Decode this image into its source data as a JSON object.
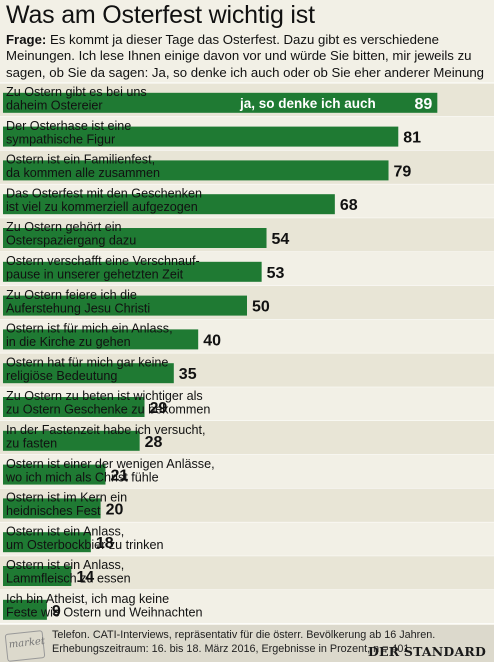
{
  "title": "Was am Osterfest wichtig ist",
  "question": {
    "label": "Frage:",
    "text": " Es kommt ja dieser Tage das Osterfest. Dazu gibt es verschiedene Meinungen. Ich lese Ihnen einige davon vor und würde Sie bitten, mir jeweils zu sagen, ob Sie da sagen: Ja, so denke ich auch oder ob Sie eher anderer Meinung sind."
  },
  "chart_data": {
    "type": "bar",
    "orientation": "horizontal",
    "series_label": "ja, so denke ich auch",
    "xlim": [
      0,
      100
    ],
    "bar_color": "#1f7a33",
    "categories": [
      "Zu Ostern gibt es bei uns|daheim Ostereier",
      "Der Osterhase ist eine|sympathische Figur",
      "Ostern ist ein Familienfest,|da kommen alle zusammen",
      "Das Osterfest mit den Geschenken|ist viel zu kommerziell aufgezogen",
      "Zu Ostern gehört ein|Osterspaziergang dazu",
      "Ostern verschafft eine Verschnauf-|pause in unserer gehetzten Zeit",
      "Zu Ostern feiere ich die|Auferstehung Jesu Christi",
      "Ostern ist für mich ein Anlass,|in die Kirche zu gehen",
      "Ostern hat für mich gar keine|religiöse Bedeutung",
      "Zu Ostern zu beten ist wichtiger als|zu Ostern Geschenke zu bekommen",
      "In der Fastenzeit habe ich versucht,|zu fasten",
      "Ostern ist einer der wenigen Anlässe,|wo ich mich als Christ fühle",
      "Ostern ist im Kern ein|heidnisches Fest",
      "Ostern ist ein Anlass,|um Osterbockbier zu trinken",
      "Ostern ist ein Anlass,|Lammfleisch zu essen",
      "Ich bin Atheist, ich mag keine|Feste wie Ostern und Weihnachten"
    ],
    "values": [
      89,
      81,
      79,
      68,
      54,
      53,
      50,
      40,
      35,
      29,
      28,
      21,
      20,
      18,
      14,
      9
    ]
  },
  "footer": {
    "logo_text": "market",
    "note": "Telefon. CATI-Interviews, repräsentativ für die österr. Bevölkerung ab 16 Jahren. Erhebungs­zeitraum: 16. bis 18. März 2016, Ergebnisse in Prozent, n = 401",
    "brand": "DER STANDARD"
  }
}
